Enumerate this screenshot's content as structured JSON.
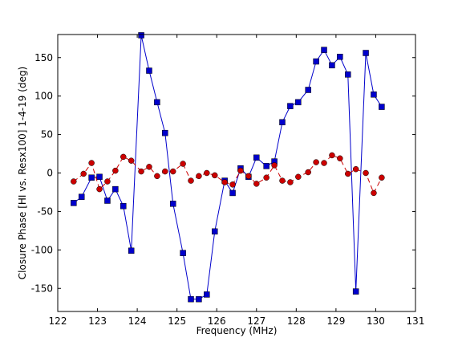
{
  "chart_data": {
    "type": "line",
    "title": "",
    "xlabel": "Frequency (MHz)",
    "ylabel": "Closure Phase [HI vs. Resx100] 1-4-19 (deg)",
    "xlim": [
      122,
      131
    ],
    "ylim": [
      -180,
      180
    ],
    "xticks": [
      122,
      123,
      124,
      125,
      126,
      127,
      128,
      129,
      130,
      131
    ],
    "yticks": [
      -150,
      -100,
      -50,
      0,
      50,
      100,
      150
    ],
    "grid": false,
    "legend": "none",
    "series": [
      {
        "color": "#0000cc",
        "marker": "square",
        "linestyle": "solid",
        "x": [
          122.4,
          122.6,
          122.85,
          123.05,
          123.25,
          123.45,
          123.65,
          123.85,
          124.1,
          124.3,
          124.5,
          124.7,
          124.9,
          125.15,
          125.35,
          125.55,
          125.75,
          125.95,
          126.2,
          126.4,
          126.6,
          126.8,
          127.0,
          127.25,
          127.45,
          127.65,
          127.85,
          128.05,
          128.3,
          128.5,
          128.7,
          128.9,
          129.1,
          129.3,
          129.5,
          129.75,
          129.95,
          130.15
        ],
        "y": [
          -39,
          -31,
          -6,
          -5,
          -36,
          -21,
          -43,
          -101,
          179,
          133,
          92,
          52,
          -40,
          -104,
          -164,
          -164,
          -158,
          -76,
          -10,
          -26,
          6,
          -5,
          20,
          9,
          15,
          66,
          87,
          92,
          108,
          145,
          160,
          140,
          151,
          128,
          -154,
          156,
          102,
          86
        ]
      },
      {
        "color": "#cc0000",
        "marker": "circle",
        "linestyle": "dashed",
        "x": [
          122.4,
          122.65,
          122.85,
          123.05,
          123.25,
          123.45,
          123.65,
          123.85,
          124.1,
          124.3,
          124.5,
          124.7,
          124.9,
          125.15,
          125.35,
          125.55,
          125.75,
          125.95,
          126.2,
          126.4,
          126.6,
          126.8,
          127.0,
          127.25,
          127.45,
          127.65,
          127.85,
          128.05,
          128.3,
          128.5,
          128.7,
          128.9,
          129.1,
          129.3,
          129.5,
          129.75,
          129.95,
          130.15
        ],
        "y": [
          -11,
          -1,
          13,
          -21,
          -11,
          3,
          21,
          16,
          2,
          8,
          -4,
          2,
          2,
          12,
          -10,
          -4,
          0,
          -3,
          -12,
          -15,
          3,
          -4,
          -14,
          -6,
          10,
          -10,
          -12,
          -5,
          1,
          14,
          13,
          23,
          19,
          -1,
          5,
          0,
          -26,
          -6
        ]
      }
    ]
  }
}
